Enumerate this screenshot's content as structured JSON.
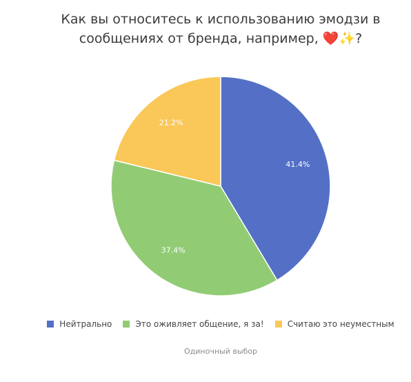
{
  "chart_data": {
    "type": "pie",
    "title_line1": "Как вы относитесь к использованию эмодзи в",
    "title_line2": "сообщениях от бренда, например, ❤️✨?",
    "slices": [
      {
        "name": "Нейтрально",
        "value": 41.4,
        "label": "41.4%",
        "color": "#5470c6"
      },
      {
        "name": "Это оживляет общение, я за!",
        "value": 37.4,
        "label": "37.4%",
        "color": "#91cc75"
      },
      {
        "name": "Считаю это неуместным",
        "value": 21.2,
        "label": "21.2%",
        "color": "#fac858"
      }
    ],
    "start_angle": "12 o'clock",
    "direction": "clockwise",
    "legend_position": "bottom",
    "footnote": "Одиночный выбор"
  }
}
